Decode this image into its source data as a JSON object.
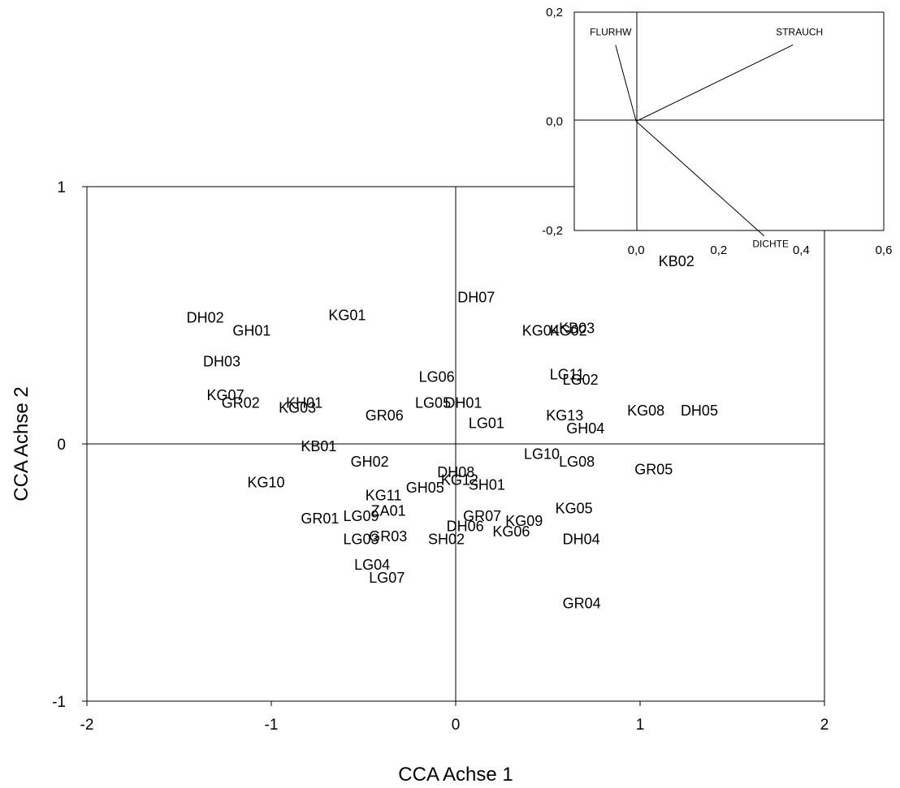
{
  "chart_data": [
    {
      "type": "scatter",
      "title": "",
      "xlabel": "CCA Achse 1",
      "ylabel": "CCA Achse 2",
      "xlim": [
        -2,
        2
      ],
      "ylim": [
        -1,
        1
      ],
      "xticks": [
        "-2",
        "-1",
        "0",
        "1",
        "2"
      ],
      "yticks": [
        "-1",
        "0",
        "1"
      ],
      "zero_lines": true,
      "points": [
        {
          "label": "DH02",
          "x": -1.46,
          "y": 0.49
        },
        {
          "label": "GH01",
          "x": -1.21,
          "y": 0.44
        },
        {
          "label": "KG01",
          "x": -0.69,
          "y": 0.5
        },
        {
          "label": "DH03",
          "x": -1.37,
          "y": 0.32
        },
        {
          "label": "KG07",
          "x": -1.35,
          "y": 0.19
        },
        {
          "label": "GR02",
          "x": -1.27,
          "y": 0.16
        },
        {
          "label": "KH01",
          "x": -0.92,
          "y": 0.16
        },
        {
          "label": "KG03",
          "x": -0.96,
          "y": 0.14
        },
        {
          "label": "GR06",
          "x": -0.49,
          "y": 0.11
        },
        {
          "label": "KB01",
          "x": -0.84,
          "y": -0.01
        },
        {
          "label": "GH02",
          "x": -0.57,
          "y": -0.07
        },
        {
          "label": "KG10",
          "x": -1.13,
          "y": -0.15
        },
        {
          "label": "KG11",
          "x": -0.49,
          "y": -0.2
        },
        {
          "label": "GR01",
          "x": -0.84,
          "y": -0.29
        },
        {
          "label": "LG09",
          "x": -0.61,
          "y": -0.28
        },
        {
          "label": "ZA01",
          "x": -0.46,
          "y": -0.26
        },
        {
          "label": "LG03",
          "x": -0.61,
          "y": -0.37
        },
        {
          "label": "GR03",
          "x": -0.47,
          "y": -0.36
        },
        {
          "label": "LG04",
          "x": -0.55,
          "y": -0.47
        },
        {
          "label": "LG07",
          "x": -0.47,
          "y": -0.52
        },
        {
          "label": "DH07",
          "x": 0.01,
          "y": 0.57
        },
        {
          "label": "LG06",
          "x": -0.2,
          "y": 0.26
        },
        {
          "label": "LG05",
          "x": -0.22,
          "y": 0.16
        },
        {
          "label": "DH01",
          "x": -0.06,
          "y": 0.16
        },
        {
          "label": "LG01",
          "x": 0.07,
          "y": 0.08
        },
        {
          "label": "DH08",
          "x": -0.1,
          "y": -0.11
        },
        {
          "label": "KG12",
          "x": -0.08,
          "y": -0.14
        },
        {
          "label": "SH01",
          "x": 0.07,
          "y": -0.16
        },
        {
          "label": "GH05",
          "x": -0.27,
          "y": -0.17
        },
        {
          "label": "GR07",
          "x": 0.04,
          "y": -0.28
        },
        {
          "label": "DH06",
          "x": -0.05,
          "y": -0.32
        },
        {
          "label": "SH02",
          "x": -0.15,
          "y": -0.37
        },
        {
          "label": "KG09",
          "x": 0.27,
          "y": -0.3
        },
        {
          "label": "KG06",
          "x": 0.2,
          "y": -0.34
        },
        {
          "label": "KG04",
          "x": 0.36,
          "y": 0.44
        },
        {
          "label": "KG02",
          "x": 0.51,
          "y": 0.44
        },
        {
          "label": "KB03",
          "x": 0.56,
          "y": 0.45
        },
        {
          "label": "LG11",
          "x": 0.51,
          "y": 0.27
        },
        {
          "label": "LG02",
          "x": 0.58,
          "y": 0.25
        },
        {
          "label": "KG13",
          "x": 0.49,
          "y": 0.11
        },
        {
          "label": "GH04",
          "x": 0.6,
          "y": 0.06
        },
        {
          "label": "LG10",
          "x": 0.37,
          "y": -0.04
        },
        {
          "label": "LG08",
          "x": 0.56,
          "y": -0.07
        },
        {
          "label": "KG05",
          "x": 0.54,
          "y": -0.25
        },
        {
          "label": "DH04",
          "x": 0.58,
          "y": -0.37
        },
        {
          "label": "GR04",
          "x": 0.58,
          "y": -0.62
        },
        {
          "label": "KG08",
          "x": 0.93,
          "y": 0.13
        },
        {
          "label": "DH05",
          "x": 1.22,
          "y": 0.13
        },
        {
          "label": "GR05",
          "x": 0.97,
          "y": -0.1
        },
        {
          "label": "KB02",
          "x": 1.1,
          "y": 0.71
        }
      ]
    },
    {
      "type": "biplot_vectors",
      "title": "",
      "xlabel": "",
      "ylabel": "",
      "xlim": [
        -0.15,
        0.6
      ],
      "ylim": [
        -0.2,
        0.2
      ],
      "xticks": [
        "0,0",
        "0,2",
        "0,4",
        "0,6"
      ],
      "yticks": [
        "0,2",
        "0,0",
        "-0,2"
      ],
      "vectors": [
        {
          "label": "FLURHW",
          "x": -0.05,
          "y": 0.14
        },
        {
          "label": "STRAUCH",
          "x": 0.38,
          "y": 0.14
        },
        {
          "label": "DICHTE",
          "x": 0.31,
          "y": -0.21
        }
      ]
    }
  ]
}
